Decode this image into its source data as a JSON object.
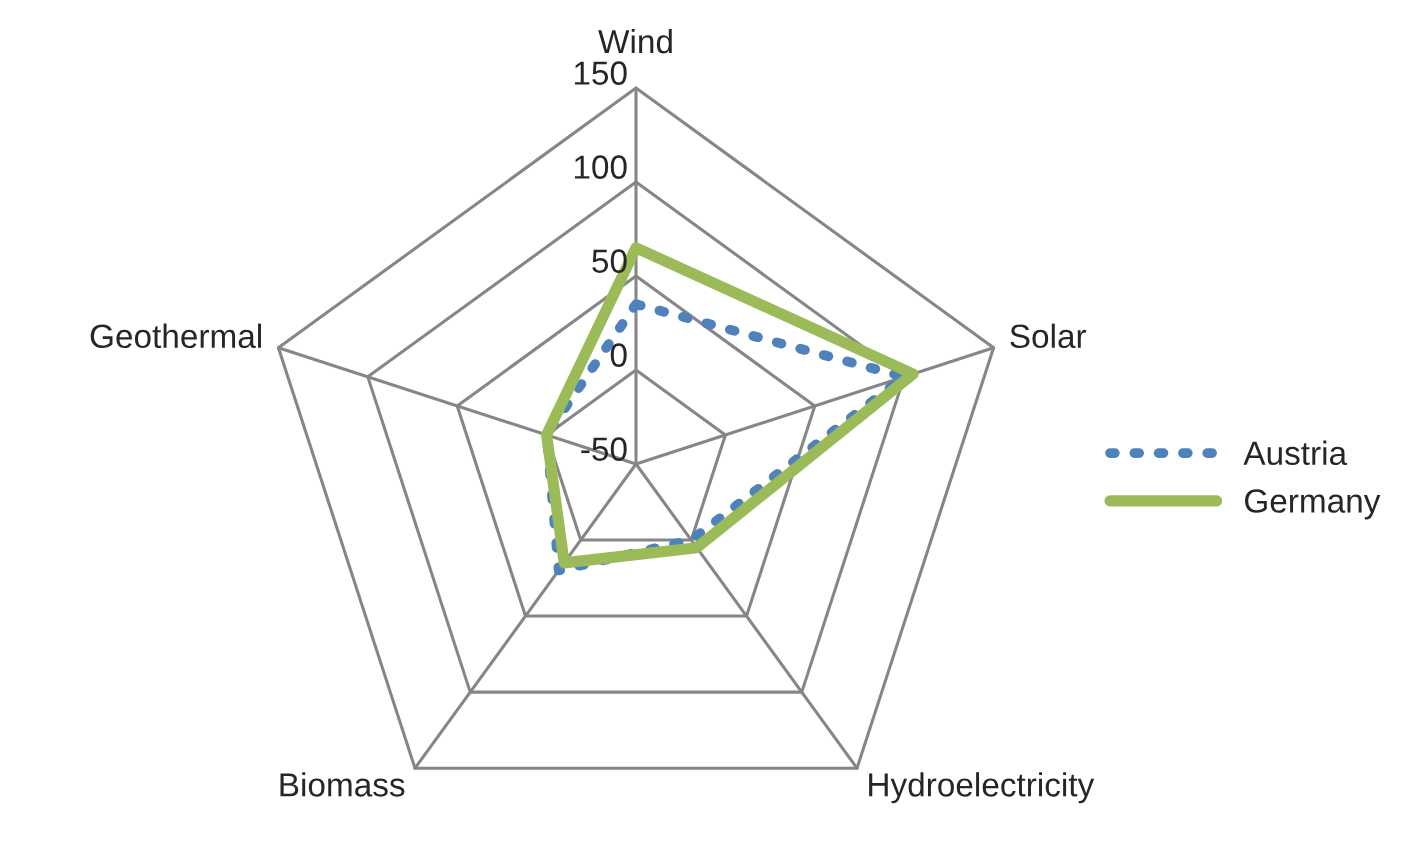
{
  "chart_data": {
    "type": "radar",
    "categories": [
      "Wind",
      "Solar",
      "Hydroelectricity",
      "Biomass",
      "Geothermal"
    ],
    "ylim": [
      -50,
      150
    ],
    "yticks": [
      -50,
      0,
      50,
      100,
      150
    ],
    "legend": "right",
    "series": [
      {
        "name": "Austria",
        "color": "#4f81bd",
        "line_style": "dotted",
        "values": [
          35,
          100,
          0,
          20,
          0
        ]
      },
      {
        "name": "Germany",
        "color": "#9bbb59",
        "line_style": "solid",
        "values": [
          65,
          105,
          5,
          15,
          0
        ]
      }
    ]
  }
}
